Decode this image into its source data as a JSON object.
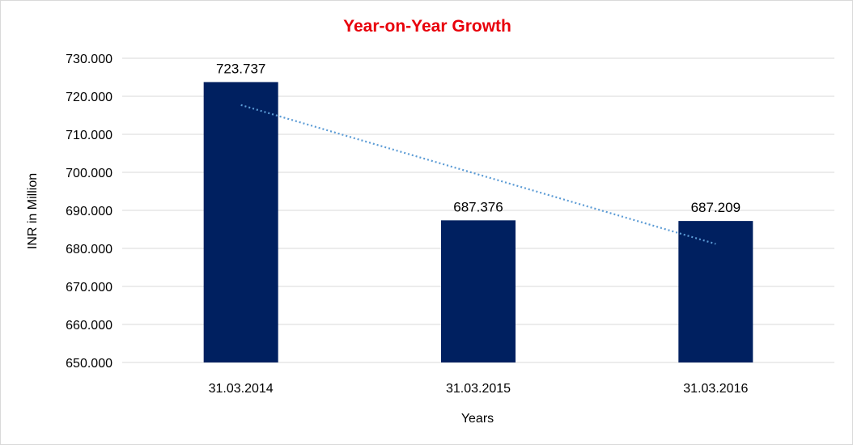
{
  "chart_data": {
    "type": "bar",
    "title": "Year-on-Year Growth",
    "xlabel": "Years",
    "ylabel": "INR in Million",
    "categories": [
      "31.03.2014",
      "31.03.2015",
      "31.03.2016"
    ],
    "values": [
      723.737,
      687.376,
      687.209
    ],
    "value_labels": [
      "723.737",
      "687.376",
      "687.209"
    ],
    "ylim": [
      650,
      730
    ],
    "yticks": [
      650,
      660,
      670,
      680,
      690,
      700,
      710,
      720,
      730
    ],
    "ytick_labels": [
      "650.000",
      "660.000",
      "670.000",
      "680.000",
      "690.000",
      "700.000",
      "710.000",
      "720.000",
      "730.000"
    ],
    "grid": true,
    "legend": "none",
    "trendline": {
      "type": "linear",
      "style": "dotted"
    },
    "colors": {
      "bar": "#002060",
      "trendline": "#5b9bd5",
      "title": "#e8000b",
      "grid": "#d9d9d9"
    }
  }
}
